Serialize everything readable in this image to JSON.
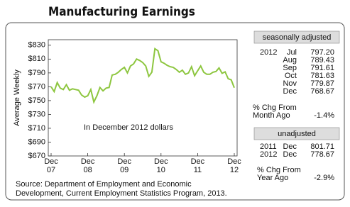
{
  "chart_data": {
    "type": "line",
    "title": "Manufacturing Earnings",
    "y_label": "Average Weekly",
    "annotation": "In December 2012 dollars",
    "categories": [
      "Dec 07",
      null,
      null,
      null,
      null,
      null,
      null,
      null,
      null,
      null,
      null,
      null,
      "Dec 08",
      null,
      null,
      null,
      null,
      null,
      null,
      null,
      null,
      null,
      null,
      null,
      "Dec 09",
      null,
      null,
      null,
      null,
      null,
      null,
      null,
      null,
      null,
      null,
      null,
      "Dec 10",
      null,
      null,
      null,
      null,
      null,
      null,
      null,
      null,
      null,
      null,
      null,
      "Dec 11",
      null,
      null,
      null,
      null,
      null,
      null,
      null,
      null,
      null,
      null,
      null,
      "Dec 12"
    ],
    "series": [
      {
        "name": "Average weekly earnings",
        "color": "#8dc63f",
        "values": [
          770,
          763,
          776,
          768,
          766,
          773,
          765,
          767,
          766,
          765,
          758,
          755,
          757,
          766,
          748,
          757,
          769,
          764,
          768,
          769,
          787,
          788,
          791,
          795,
          798,
          790,
          800,
          803,
          810,
          808,
          805,
          800,
          785,
          791,
          825,
          822,
          806,
          804,
          801,
          799,
          798,
          795,
          791,
          794,
          788,
          790,
          799,
          786,
          793,
          800,
          791,
          788,
          788,
          791,
          792,
          797.2,
          789.43,
          791.61,
          781.63,
          779.87,
          768.67
        ]
      }
    ],
    "ylim": [
      670,
      838
    ],
    "yticks": [
      {
        "value": 670,
        "label": "$670"
      },
      {
        "value": 690,
        "label": "$690"
      },
      {
        "value": 710,
        "label": "$710"
      },
      {
        "value": 730,
        "label": "$730"
      },
      {
        "value": 750,
        "label": "$750"
      },
      {
        "value": 770,
        "label": "$770"
      },
      {
        "value": 790,
        "label": "$790"
      },
      {
        "value": 810,
        "label": "$810"
      },
      {
        "value": 830,
        "label": "$830"
      }
    ],
    "grid": false
  },
  "side_panel": {
    "seasonal": {
      "header": "seasonally adjusted",
      "rows": [
        [
          "2012",
          "Jul",
          "797.20"
        ],
        [
          null,
          "Aug",
          "789.43"
        ],
        [
          null,
          "Sep",
          "791.61"
        ],
        [
          null,
          "Oct",
          "781.63"
        ],
        [
          null,
          "Nov",
          "779.87"
        ],
        [
          null,
          "Dec",
          "768.67"
        ]
      ],
      "change_label": [
        "% Chg From",
        "Month Ago"
      ],
      "change": "-1.4%"
    },
    "unadjusted": {
      "header": "unadjusted",
      "rows": [
        [
          "2011",
          "Dec",
          "801.71"
        ],
        [
          "2012",
          "Dec",
          "778.67"
        ]
      ],
      "change_label": [
        "% Chg From",
        "Year Ago"
      ],
      "change": "-2.9%"
    }
  },
  "source": [
    "Source:  Department of Employment and Economic",
    "Development, Current Employment Statistics Program, 2013."
  ]
}
